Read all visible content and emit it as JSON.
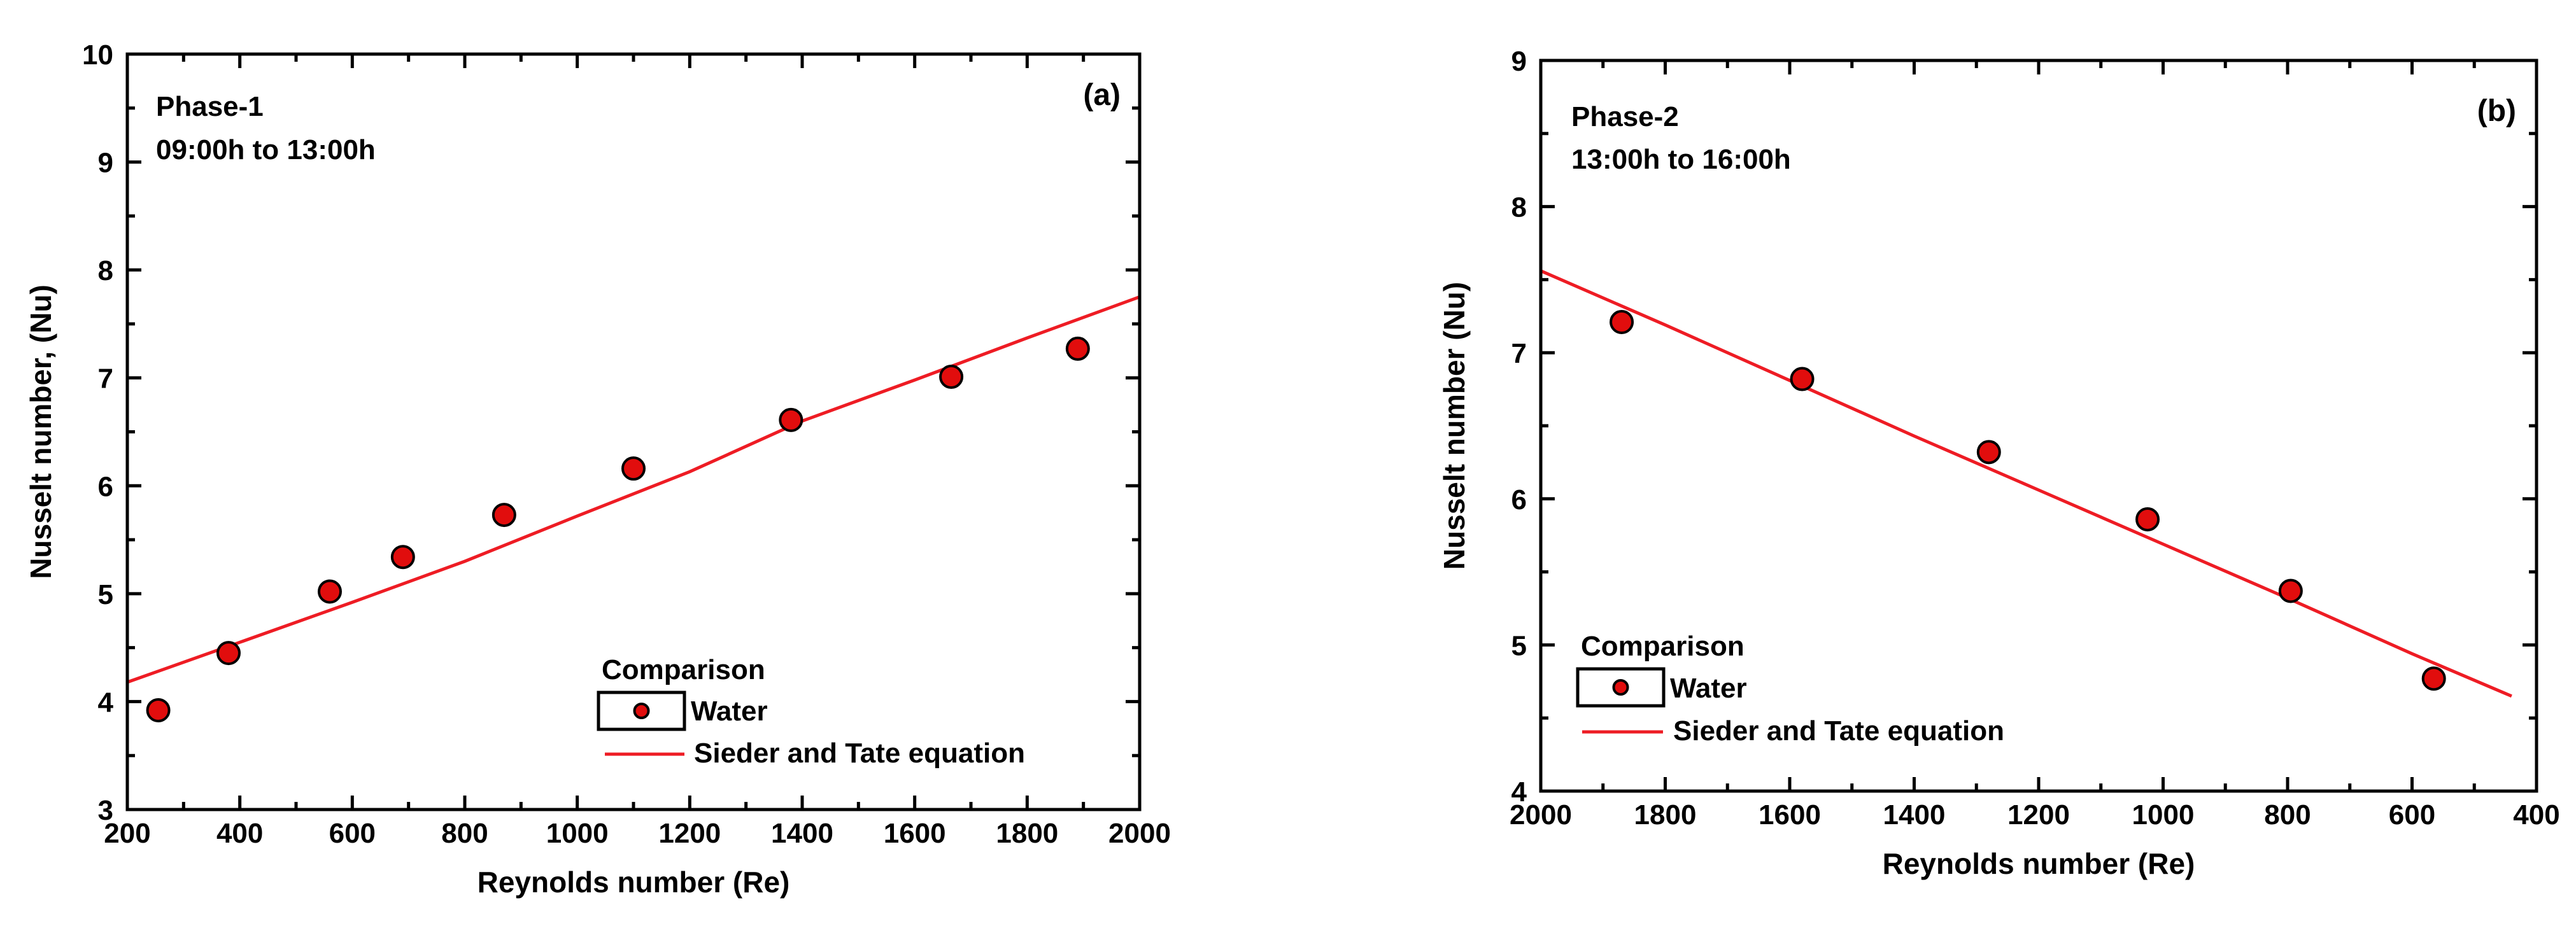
{
  "chart_data": [
    {
      "type": "scatter",
      "panel_tag": "(a)",
      "annotations": [
        "Phase-1",
        "09:00h to 13:00h"
      ],
      "xlabel": "Reynolds number (Re)",
      "ylabel": "Nusselt number, (Nu)",
      "xlim": [
        200,
        2000
      ],
      "ylim": [
        3,
        10
      ],
      "x_reversed": false,
      "x_ticks": [
        200,
        400,
        600,
        800,
        1000,
        1200,
        1400,
        1600,
        1800,
        2000
      ],
      "y_ticks": [
        3,
        4,
        5,
        6,
        7,
        8,
        9,
        10
      ],
      "legend": {
        "title": "Comparison",
        "placement": "bottom-right",
        "entries": [
          "Water",
          "Sieder and Tate equation"
        ]
      },
      "series": [
        {
          "name": "Water",
          "kind": "markers",
          "x": [
            255,
            380,
            560,
            690,
            870,
            1100,
            1380,
            1665,
            1890
          ],
          "y": [
            3.92,
            4.45,
            5.02,
            5.34,
            5.73,
            6.16,
            6.61,
            7.01,
            7.27
          ]
        },
        {
          "name": "Sieder and Tate equation",
          "kind": "line",
          "x": [
            200,
            400,
            600,
            800,
            1000,
            1200,
            1400,
            1600,
            1800,
            2000
          ],
          "y": [
            4.18,
            4.55,
            4.92,
            5.3,
            5.72,
            6.13,
            6.6,
            6.98,
            7.37,
            7.75
          ]
        }
      ]
    },
    {
      "type": "scatter",
      "panel_tag": "(b)",
      "annotations": [
        "Phase-2",
        "13:00h to 16:00h"
      ],
      "xlabel": "Reynolds number (Re)",
      "ylabel": "Nusselt number (Nu)",
      "xlim": [
        2000,
        400
      ],
      "ylim": [
        4,
        9
      ],
      "x_reversed": true,
      "x_ticks": [
        2000,
        1800,
        1600,
        1400,
        1200,
        1000,
        800,
        600,
        400
      ],
      "y_ticks": [
        4,
        5,
        6,
        7,
        8,
        9
      ],
      "legend": {
        "title": "Comparison",
        "placement": "bottom-left",
        "entries": [
          "Water",
          "Sieder and Tate equation"
        ]
      },
      "series": [
        {
          "name": "Water",
          "kind": "markers",
          "x": [
            1870,
            1580,
            1280,
            1025,
            795,
            565
          ],
          "y": [
            7.21,
            6.82,
            6.32,
            5.86,
            5.37,
            4.77
          ]
        },
        {
          "name": "Sieder and Tate equation",
          "kind": "line",
          "x": [
            2000,
            1800,
            1600,
            1400,
            1200,
            1000,
            800,
            600,
            440
          ],
          "y": [
            7.56,
            7.19,
            6.81,
            6.43,
            6.06,
            5.69,
            5.32,
            4.94,
            4.65
          ]
        }
      ]
    }
  ]
}
